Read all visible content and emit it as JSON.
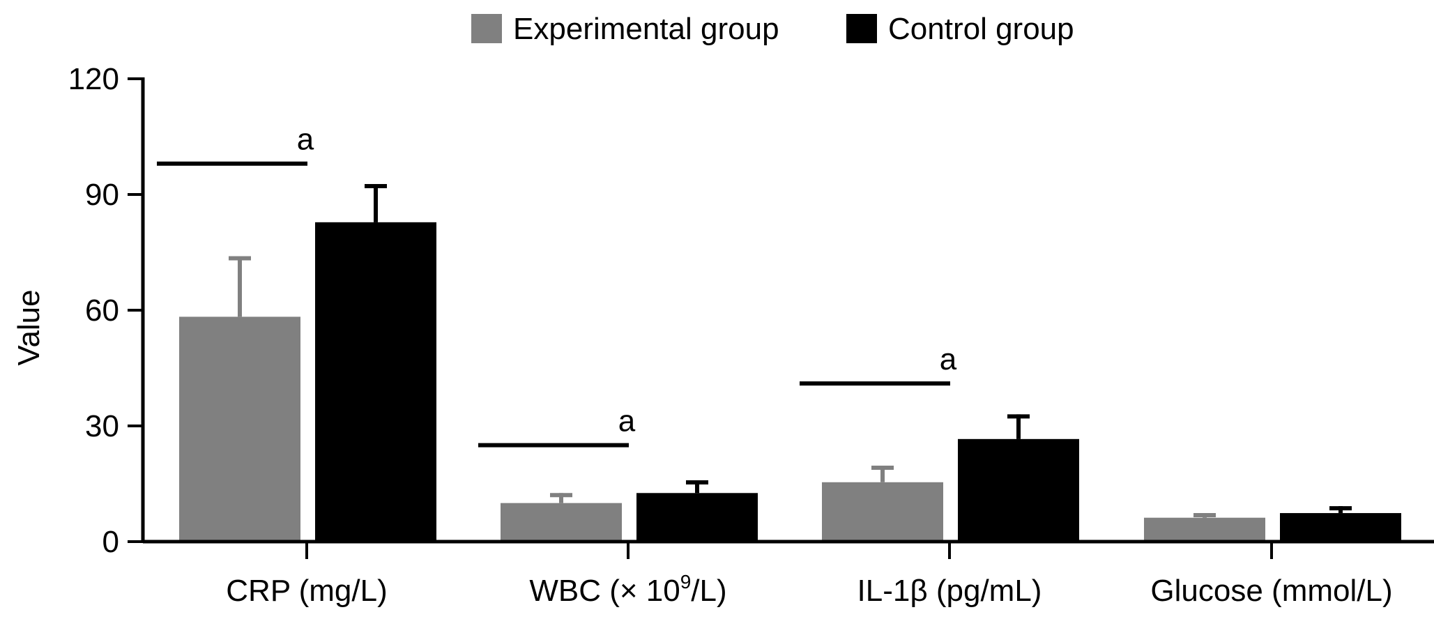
{
  "chart_data": {
    "type": "bar",
    "title": "",
    "xlabel": "",
    "ylabel": "Value",
    "ylim": [
      0,
      120
    ],
    "yticks": [
      0,
      30,
      60,
      90,
      120
    ],
    "grid": false,
    "legend_position": "top",
    "categories": [
      "CRP (mg/L)",
      "WBC (× 10^9/L)",
      "IL-1β (pg/mL)",
      "Glucose (mmol/L)"
    ],
    "category_labels": [
      {
        "main": "CRP (mg/L)"
      },
      {
        "pre": "WBC (× 10",
        "sup": "9",
        "post": "/L)"
      },
      {
        "main": "IL-1β (pg/mL)"
      },
      {
        "main": "Glucose (mmol/L)"
      }
    ],
    "series": [
      {
        "name": "Experimental group",
        "color": "#808080",
        "values": [
          58.3,
          10.0,
          15.4,
          6.2
        ],
        "error": [
          15.7,
          2.6,
          4.3,
          1.2
        ]
      },
      {
        "name": "Control group",
        "color": "#000000",
        "values": [
          82.8,
          12.6,
          26.6,
          7.4
        ],
        "error": [
          9.9,
          3.3,
          6.4,
          1.8
        ]
      }
    ],
    "annotations": [
      {
        "category": 0,
        "text": "a",
        "level": 98
      },
      {
        "category": 1,
        "text": "a",
        "level": 25
      },
      {
        "category": 2,
        "text": "a",
        "level": 41
      }
    ]
  }
}
